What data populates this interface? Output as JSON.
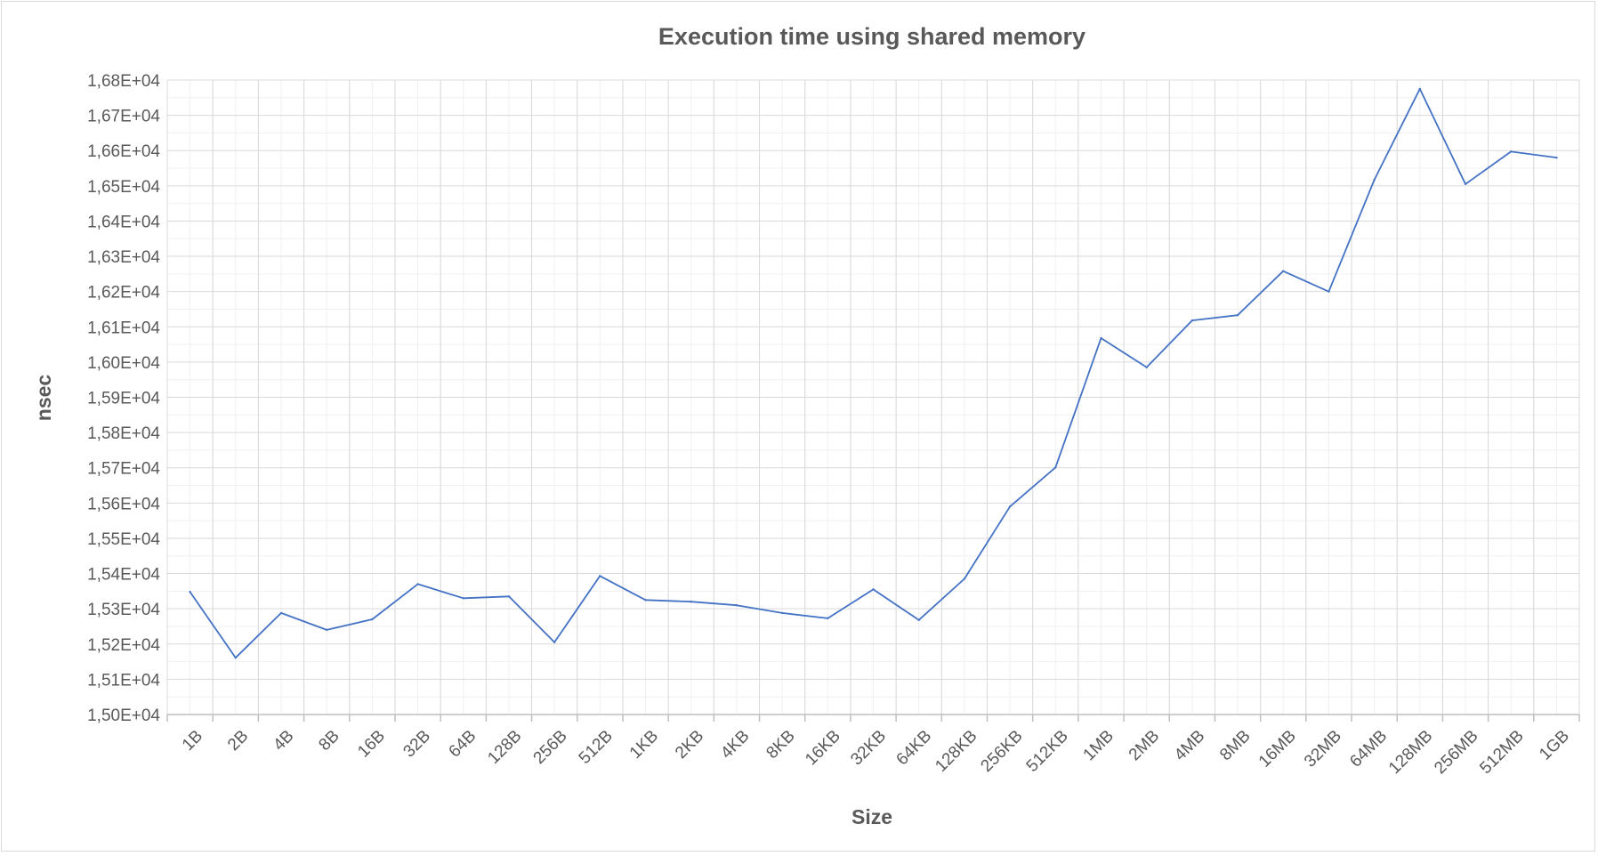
{
  "chart_data": {
    "type": "line",
    "title": "Execution time using shared memory",
    "xlabel": "Size",
    "ylabel": "nsec",
    "ylim": [
      15000,
      16800
    ],
    "y_tick_step": 100,
    "y_tick_labels": [
      "1,50E+04",
      "1,51E+04",
      "1,52E+04",
      "1,53E+04",
      "1,54E+04",
      "1,55E+04",
      "1,56E+04",
      "1,57E+04",
      "1,58E+04",
      "1,59E+04",
      "1,60E+04",
      "1,61E+04",
      "1,62E+04",
      "1,63E+04",
      "1,64E+04",
      "1,65E+04",
      "1,66E+04",
      "1,67E+04",
      "1,68E+04"
    ],
    "grid": true,
    "legend": "none",
    "line_color": "#4472c4",
    "categories": [
      "1B",
      "2B",
      "4B",
      "8B",
      "16B",
      "32B",
      "64B",
      "128B",
      "256B",
      "512B",
      "1KB",
      "2KB",
      "4KB",
      "8KB",
      "16KB",
      "32KB",
      "64KB",
      "128KB",
      "256KB",
      "512KB",
      "1MB",
      "2MB",
      "4MB",
      "8MB",
      "16MB",
      "32MB",
      "64MB",
      "128MB",
      "256MB",
      "512MB",
      "1GB"
    ],
    "series": [
      {
        "values": [
          15348,
          15161,
          15288,
          15240,
          15270,
          15370,
          15330,
          15335,
          15205,
          15393,
          15325,
          15320,
          15310,
          15288,
          15273,
          15355,
          15268,
          15385,
          15590,
          15701,
          16068,
          15985,
          16118,
          16133,
          16258,
          16200,
          16517,
          16775,
          16505,
          16597,
          16580
        ]
      }
    ]
  }
}
